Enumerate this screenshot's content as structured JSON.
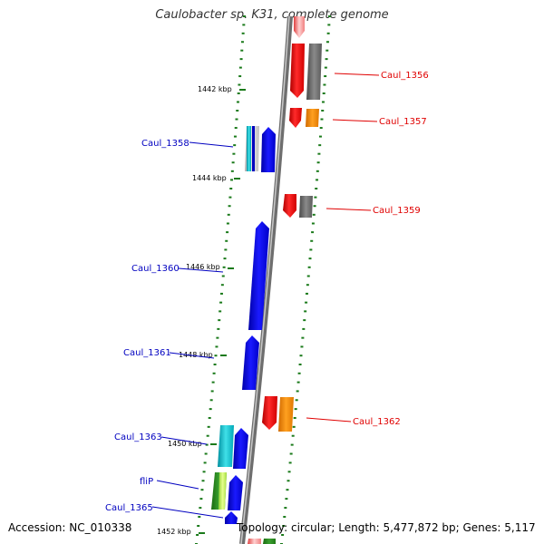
{
  "title": "Caulobacter sp. K31, complete genome",
  "footer": {
    "accession": "Accession: NC_010338",
    "summary": "Topology: circular; Length: 5,477,872 bp; Genes: 5,117"
  },
  "colors": {
    "backbone": "#808080",
    "tick": "#1a7a1a",
    "forward_label": "#e00000",
    "reverse_label": "#0000c0"
  },
  "ticks": [
    {
      "label": "1442 kbp"
    },
    {
      "label": "1444 kbp"
    },
    {
      "label": "1446 kbp"
    },
    {
      "label": "1448 kbp"
    },
    {
      "label": "1450 kbp"
    },
    {
      "label": "1452 kbp"
    }
  ],
  "gene_labels": [
    {
      "text": "Caul_1356",
      "strand": "forward"
    },
    {
      "text": "Caul_1357",
      "strand": "forward"
    },
    {
      "text": "Caul_1358",
      "strand": "reverse"
    },
    {
      "text": "Caul_1359",
      "strand": "forward"
    },
    {
      "text": "Caul_1360",
      "strand": "reverse"
    },
    {
      "text": "Caul_1361",
      "strand": "reverse"
    },
    {
      "text": "Caul_1362",
      "strand": "forward"
    },
    {
      "text": "Caul_1363",
      "strand": "reverse"
    },
    {
      "text": "fliP",
      "strand": "reverse"
    },
    {
      "text": "Caul_1365",
      "strand": "reverse"
    }
  ]
}
